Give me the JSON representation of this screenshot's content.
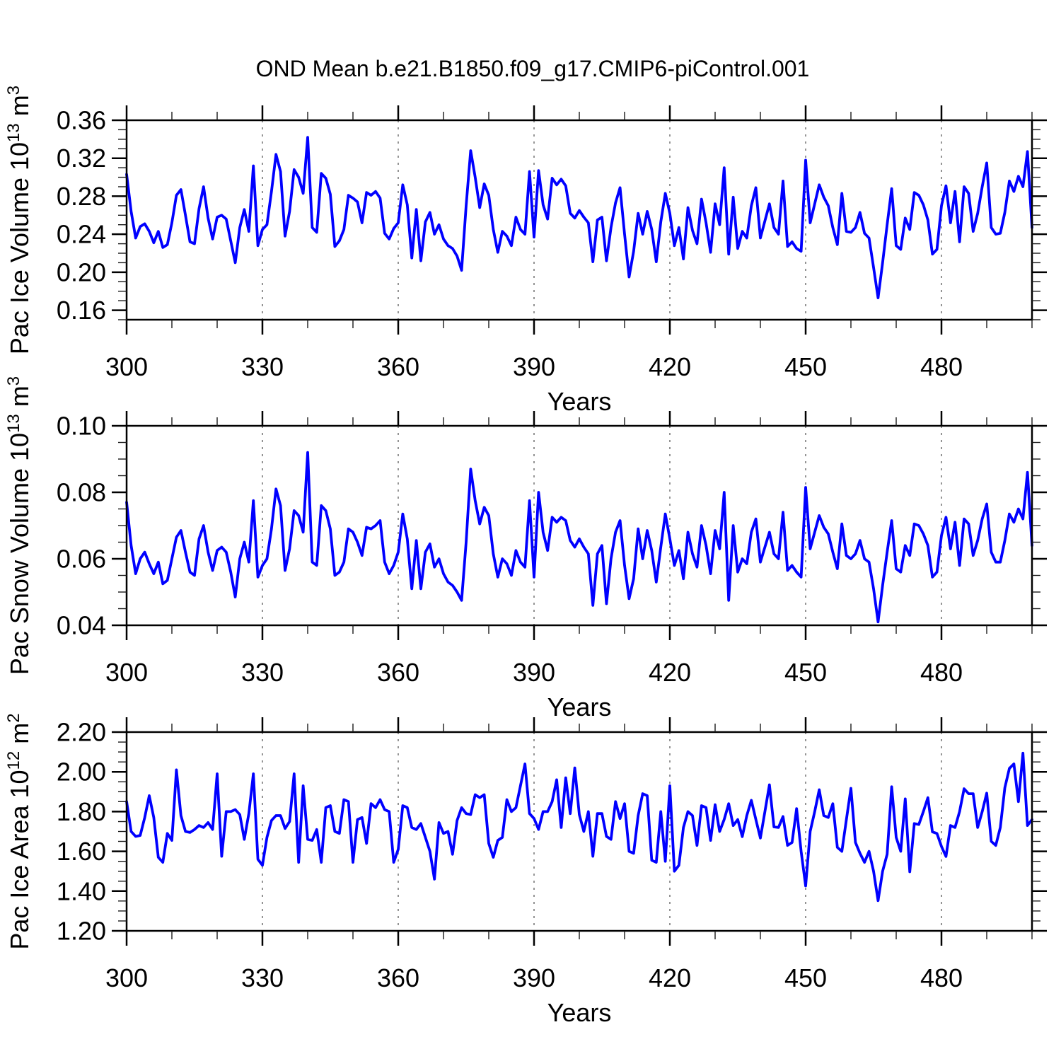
{
  "title": "OND Mean b.e21.B1850.f09_g17.CMIP6-piControl.001",
  "line_color": "#0000ff",
  "grid_color": "#666666",
  "chart_data": [
    {
      "type": "line",
      "name": "pac-ice-volume",
      "ylabel_text": "Pac Ice Volume 10^13 m^3",
      "ylabel_parts": [
        {
          "t": "Pac Ice Volume 10"
        },
        {
          "t": "13",
          "sup": true
        },
        {
          "t": " m"
        },
        {
          "t": "3",
          "sup": true
        }
      ],
      "xlabel": "Years",
      "xlim": [
        300,
        500
      ],
      "ylim": [
        0.15,
        0.36
      ],
      "xticks": [
        300,
        330,
        360,
        390,
        420,
        450,
        480
      ],
      "x_minor_step": 10,
      "grid_x": [
        330,
        360,
        390,
        420,
        450,
        480
      ],
      "yticks": [
        {
          "v": 0.16,
          "label": "0.16"
        },
        {
          "v": 0.2,
          "label": "0.20"
        },
        {
          "v": 0.24,
          "label": "0.24"
        },
        {
          "v": 0.28,
          "label": "0.28"
        },
        {
          "v": 0.32,
          "label": "0.32"
        },
        {
          "v": 0.36,
          "label": "0.36"
        }
      ],
      "y_minor_step": 0.01,
      "x_start": 300,
      "x_step": 1,
      "values": [
        0.303,
        0.264,
        0.236,
        0.248,
        0.251,
        0.243,
        0.231,
        0.243,
        0.226,
        0.229,
        0.252,
        0.281,
        0.287,
        0.26,
        0.232,
        0.23,
        0.267,
        0.29,
        0.257,
        0.235,
        0.258,
        0.26,
        0.256,
        0.233,
        0.21,
        0.247,
        0.266,
        0.243,
        0.312,
        0.228,
        0.245,
        0.25,
        0.285,
        0.324,
        0.306,
        0.238,
        0.264,
        0.308,
        0.3,
        0.283,
        0.342,
        0.247,
        0.242,
        0.304,
        0.299,
        0.282,
        0.227,
        0.233,
        0.245,
        0.281,
        0.278,
        0.274,
        0.252,
        0.284,
        0.281,
        0.285,
        0.278,
        0.241,
        0.235,
        0.246,
        0.252,
        0.292,
        0.271,
        0.215,
        0.266,
        0.212,
        0.253,
        0.263,
        0.24,
        0.25,
        0.235,
        0.228,
        0.225,
        0.217,
        0.202,
        0.27,
        0.328,
        0.3,
        0.268,
        0.293,
        0.281,
        0.245,
        0.221,
        0.243,
        0.238,
        0.228,
        0.258,
        0.245,
        0.24,
        0.306,
        0.237,
        0.307,
        0.271,
        0.256,
        0.299,
        0.292,
        0.298,
        0.291,
        0.262,
        0.257,
        0.265,
        0.258,
        0.252,
        0.211,
        0.255,
        0.258,
        0.212,
        0.247,
        0.273,
        0.289,
        0.24,
        0.195,
        0.222,
        0.262,
        0.24,
        0.264,
        0.245,
        0.211,
        0.253,
        0.283,
        0.262,
        0.228,
        0.247,
        0.214,
        0.268,
        0.244,
        0.23,
        0.277,
        0.252,
        0.221,
        0.272,
        0.25,
        0.31,
        0.219,
        0.279,
        0.225,
        0.243,
        0.236,
        0.27,
        0.289,
        0.236,
        0.254,
        0.272,
        0.247,
        0.24,
        0.296,
        0.227,
        0.232,
        0.225,
        0.222,
        0.318,
        0.252,
        0.272,
        0.292,
        0.279,
        0.27,
        0.247,
        0.229,
        0.283,
        0.243,
        0.242,
        0.247,
        0.263,
        0.241,
        0.236,
        0.205,
        0.173,
        0.21,
        0.25,
        0.288,
        0.228,
        0.224,
        0.257,
        0.245,
        0.284,
        0.281,
        0.271,
        0.255,
        0.219,
        0.224,
        0.27,
        0.291,
        0.252,
        0.285,
        0.232,
        0.29,
        0.283,
        0.243,
        0.262,
        0.29,
        0.315,
        0.247,
        0.24,
        0.241,
        0.263,
        0.296,
        0.285,
        0.301,
        0.29,
        0.327,
        0.247
      ]
    },
    {
      "type": "line",
      "name": "pac-snow-volume",
      "ylabel_text": "Pac Snow Volume 10^13 m^3",
      "ylabel_parts": [
        {
          "t": "Pac Snow Volume 10"
        },
        {
          "t": "13",
          "sup": true
        },
        {
          "t": " m"
        },
        {
          "t": "3",
          "sup": true
        }
      ],
      "xlabel": "Years",
      "xlim": [
        300,
        500
      ],
      "ylim": [
        0.04,
        0.1
      ],
      "xticks": [
        300,
        330,
        360,
        390,
        420,
        450,
        480
      ],
      "x_minor_step": 10,
      "grid_x": [
        330,
        360,
        390,
        420,
        450,
        480
      ],
      "yticks": [
        {
          "v": 0.04,
          "label": "0.04"
        },
        {
          "v": 0.06,
          "label": "0.06"
        },
        {
          "v": 0.08,
          "label": "0.08"
        },
        {
          "v": 0.1,
          "label": "0.10"
        }
      ],
      "y_minor_step": 0.005,
      "x_start": 300,
      "x_step": 1,
      "values": [
        0.077,
        0.064,
        0.0555,
        0.06,
        0.062,
        0.0585,
        0.0555,
        0.059,
        0.0525,
        0.0535,
        0.06,
        0.0665,
        0.0685,
        0.062,
        0.056,
        0.055,
        0.066,
        0.07,
        0.062,
        0.0565,
        0.0625,
        0.0635,
        0.062,
        0.056,
        0.0485,
        0.06,
        0.065,
        0.059,
        0.0775,
        0.0545,
        0.058,
        0.06,
        0.069,
        0.081,
        0.076,
        0.0565,
        0.063,
        0.0745,
        0.073,
        0.068,
        0.092,
        0.059,
        0.058,
        0.076,
        0.0745,
        0.069,
        0.055,
        0.056,
        0.059,
        0.069,
        0.068,
        0.065,
        0.061,
        0.0695,
        0.069,
        0.07,
        0.0715,
        0.059,
        0.0555,
        0.058,
        0.062,
        0.0735,
        0.066,
        0.051,
        0.0655,
        0.051,
        0.062,
        0.0645,
        0.0575,
        0.06,
        0.0555,
        0.053,
        0.052,
        0.05,
        0.0475,
        0.065,
        0.087,
        0.0775,
        0.0705,
        0.0755,
        0.073,
        0.0615,
        0.0545,
        0.06,
        0.0585,
        0.055,
        0.0625,
        0.059,
        0.0575,
        0.0775,
        0.0545,
        0.08,
        0.068,
        0.0625,
        0.0725,
        0.071,
        0.0725,
        0.0715,
        0.0655,
        0.0635,
        0.066,
        0.0635,
        0.0615,
        0.046,
        0.0615,
        0.064,
        0.0465,
        0.06,
        0.068,
        0.0715,
        0.058,
        0.048,
        0.054,
        0.069,
        0.06,
        0.0685,
        0.0625,
        0.053,
        0.0635,
        0.0735,
        0.066,
        0.058,
        0.0625,
        0.054,
        0.068,
        0.0615,
        0.0575,
        0.07,
        0.064,
        0.0555,
        0.0685,
        0.063,
        0.08,
        0.0475,
        0.07,
        0.056,
        0.06,
        0.0585,
        0.068,
        0.072,
        0.059,
        0.0635,
        0.068,
        0.0615,
        0.06,
        0.074,
        0.0565,
        0.058,
        0.056,
        0.0545,
        0.0815,
        0.063,
        0.068,
        0.073,
        0.0695,
        0.0675,
        0.062,
        0.057,
        0.0705,
        0.061,
        0.06,
        0.0615,
        0.0655,
        0.06,
        0.059,
        0.051,
        0.041,
        0.052,
        0.062,
        0.0715,
        0.057,
        0.056,
        0.064,
        0.061,
        0.0705,
        0.07,
        0.0675,
        0.064,
        0.0545,
        0.056,
        0.067,
        0.0725,
        0.063,
        0.071,
        0.058,
        0.072,
        0.0705,
        0.061,
        0.0655,
        0.072,
        0.0765,
        0.062,
        0.059,
        0.059,
        0.0655,
        0.0735,
        0.071,
        0.075,
        0.072,
        0.086,
        0.064
      ]
    },
    {
      "type": "line",
      "name": "pac-ice-area",
      "ylabel_text": "Pac Ice Area 10^12 m^2",
      "ylabel_parts": [
        {
          "t": "Pac Ice Area 10"
        },
        {
          "t": "12",
          "sup": true
        },
        {
          "t": " m"
        },
        {
          "t": "2",
          "sup": true
        }
      ],
      "xlabel": "Years",
      "xlim": [
        300,
        500
      ],
      "ylim": [
        1.2,
        2.2
      ],
      "xticks": [
        300,
        330,
        360,
        390,
        420,
        450,
        480
      ],
      "x_minor_step": 10,
      "grid_x": [
        330,
        360,
        390,
        420,
        450,
        480
      ],
      "yticks": [
        {
          "v": 1.2,
          "label": "1.20"
        },
        {
          "v": 1.4,
          "label": "1.40"
        },
        {
          "v": 1.6,
          "label": "1.60"
        },
        {
          "v": 1.8,
          "label": "1.80"
        },
        {
          "v": 2.0,
          "label": "2.00"
        },
        {
          "v": 2.2,
          "label": "2.20"
        }
      ],
      "y_minor_step": 0.05,
      "x_start": 300,
      "x_step": 1,
      "values": [
        1.85,
        1.7,
        1.675,
        1.68,
        1.77,
        1.88,
        1.77,
        1.57,
        1.545,
        1.69,
        1.655,
        2.01,
        1.78,
        1.7,
        1.695,
        1.71,
        1.73,
        1.72,
        1.745,
        1.71,
        1.99,
        1.575,
        1.8,
        1.8,
        1.81,
        1.785,
        1.66,
        1.79,
        1.99,
        1.56,
        1.53,
        1.67,
        1.755,
        1.78,
        1.78,
        1.715,
        1.75,
        1.99,
        1.545,
        1.93,
        1.66,
        1.655,
        1.71,
        1.545,
        1.82,
        1.83,
        1.7,
        1.69,
        1.86,
        1.85,
        1.545,
        1.76,
        1.77,
        1.64,
        1.84,
        1.82,
        1.86,
        1.81,
        1.8,
        1.545,
        1.61,
        1.83,
        1.82,
        1.72,
        1.71,
        1.74,
        1.67,
        1.6,
        1.46,
        1.745,
        1.69,
        1.7,
        1.585,
        1.755,
        1.82,
        1.79,
        1.785,
        1.885,
        1.87,
        1.885,
        1.64,
        1.57,
        1.655,
        1.67,
        1.86,
        1.8,
        1.82,
        1.93,
        2.04,
        1.79,
        1.765,
        1.71,
        1.8,
        1.8,
        1.85,
        1.96,
        1.72,
        1.97,
        1.79,
        2.02,
        1.785,
        1.7,
        1.8,
        1.575,
        1.79,
        1.79,
        1.675,
        1.66,
        1.85,
        1.765,
        1.84,
        1.6,
        1.59,
        1.78,
        1.89,
        1.88,
        1.555,
        1.545,
        1.8,
        1.55,
        1.93,
        1.5,
        1.53,
        1.72,
        1.8,
        1.78,
        1.63,
        1.83,
        1.82,
        1.655,
        1.835,
        1.7,
        1.76,
        1.84,
        1.73,
        1.76,
        1.674,
        1.78,
        1.857,
        1.76,
        1.667,
        1.8,
        1.935,
        1.723,
        1.72,
        1.775,
        1.63,
        1.645,
        1.815,
        1.6,
        1.426,
        1.7,
        1.8,
        1.91,
        1.78,
        1.77,
        1.84,
        1.62,
        1.6,
        1.76,
        1.917,
        1.645,
        1.59,
        1.545,
        1.6,
        1.5,
        1.352,
        1.5,
        1.585,
        1.925,
        1.67,
        1.6,
        1.864,
        1.497,
        1.74,
        1.735,
        1.8,
        1.87,
        1.698,
        1.69,
        1.625,
        1.574,
        1.73,
        1.72,
        1.8,
        1.915,
        1.89,
        1.89,
        1.72,
        1.8,
        1.893,
        1.65,
        1.63,
        1.72,
        1.92,
        2.017,
        2.04,
        1.85,
        2.094,
        1.73,
        1.76
      ]
    }
  ]
}
